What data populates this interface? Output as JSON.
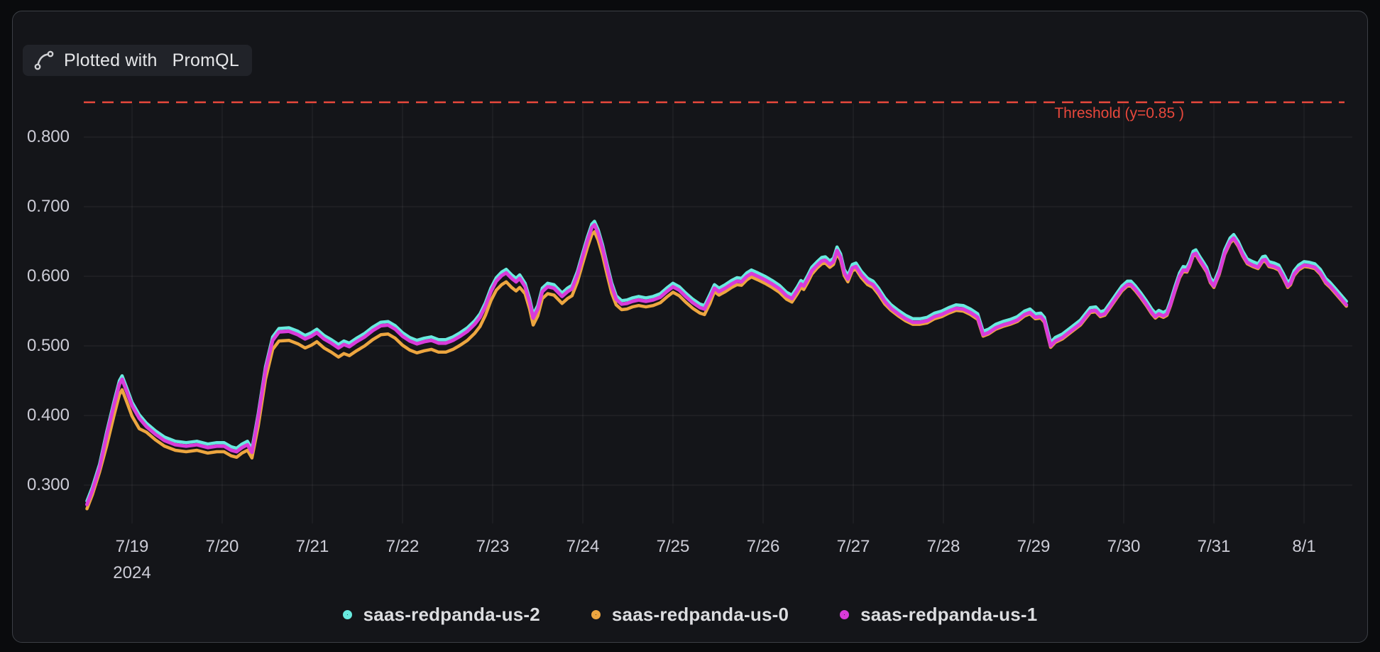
{
  "badge": {
    "prefix": "Plotted with",
    "product": "PromQL"
  },
  "threshold": {
    "label": "Threshold (y=0.85 )",
    "value": 0.85,
    "color": "#e8483c"
  },
  "axes": {
    "y_ticks": [
      {
        "value": 0.8,
        "label": "0.800"
      },
      {
        "value": 0.7,
        "label": "0.700"
      },
      {
        "value": 0.6,
        "label": "0.600"
      },
      {
        "value": 0.5,
        "label": "0.500"
      },
      {
        "value": 0.4,
        "label": "0.400"
      },
      {
        "value": 0.3,
        "label": "0.300"
      }
    ],
    "x_ticks": [
      {
        "day": 0,
        "label": "7/19",
        "sublabel": "2024"
      },
      {
        "day": 1,
        "label": "7/20"
      },
      {
        "day": 2,
        "label": "7/21"
      },
      {
        "day": 3,
        "label": "7/22"
      },
      {
        "day": 4,
        "label": "7/23"
      },
      {
        "day": 5,
        "label": "7/24"
      },
      {
        "day": 6,
        "label": "7/25"
      },
      {
        "day": 7,
        "label": "7/26"
      },
      {
        "day": 8,
        "label": "7/27"
      },
      {
        "day": 9,
        "label": "7/28"
      },
      {
        "day": 10,
        "label": "7/29"
      },
      {
        "day": 11,
        "label": "7/30"
      },
      {
        "day": 12,
        "label": "7/31"
      },
      {
        "day": 13,
        "label": "8/1"
      }
    ]
  },
  "chart_data": {
    "type": "line",
    "title": "",
    "xlabel": "",
    "ylabel": "",
    "x_unit": "days since 2024-07-19",
    "year_label": "2024",
    "ylim": [
      0.25,
      0.9
    ],
    "grid": true,
    "legend_position": "bottom-center",
    "threshold": {
      "value": 0.85,
      "label": "Threshold (y=0.85 )"
    },
    "x_days": [
      -0.5,
      -0.44,
      -0.36,
      -0.28,
      -0.2,
      -0.14,
      -0.11,
      -0.06,
      0,
      0.08,
      0.16,
      0.26,
      0.36,
      0.48,
      0.6,
      0.72,
      0.84,
      0.94,
      1.02,
      1.1,
      1.16,
      1.22,
      1.28,
      1.33,
      1.4,
      1.48,
      1.56,
      1.63,
      1.74,
      1.84,
      1.92,
      1.99,
      2.05,
      2.13,
      2.21,
      2.29,
      2.35,
      2.41,
      2.49,
      2.58,
      2.67,
      2.76,
      2.84,
      2.92,
      3,
      3.08,
      3.16,
      3.24,
      3.32,
      3.4,
      3.48,
      3.56,
      3.64,
      3.72,
      3.8,
      3.86,
      3.92,
      3.98,
      4.04,
      4.1,
      4.15,
      4.21,
      4.26,
      4.3,
      4.36,
      4.41,
      4.45,
      4.5,
      4.55,
      4.61,
      4.68,
      4.77,
      4.83,
      4.88,
      4.94,
      5,
      5.05,
      5.1,
      5.13,
      5.17,
      5.22,
      5.27,
      5.32,
      5.37,
      5.43,
      5.49,
      5.55,
      5.62,
      5.7,
      5.78,
      5.86,
      5.93,
      6,
      6.07,
      6.14,
      6.22,
      6.3,
      6.35,
      6.41,
      6.46,
      6.51,
      6.58,
      6.65,
      6.71,
      6.76,
      6.82,
      6.87,
      6.94,
      7.02,
      7.1,
      7.18,
      7.26,
      7.32,
      7.38,
      7.42,
      7.45,
      7.49,
      7.54,
      7.6,
      7.65,
      7.69,
      7.74,
      7.78,
      7.82,
      7.86,
      7.9,
      7.94,
      7.99,
      8.03,
      8.09,
      8.16,
      8.22,
      8.28,
      8.35,
      8.42,
      8.5,
      8.58,
      8.66,
      8.74,
      8.82,
      8.9,
      8.98,
      9.06,
      9.14,
      9.22,
      9.3,
      9.38,
      9.44,
      9.5,
      9.58,
      9.66,
      9.74,
      9.82,
      9.9,
      9.96,
      10.02,
      10.08,
      10.12,
      10.16,
      10.19,
      10.24,
      10.32,
      10.42,
      10.52,
      10.58,
      10.63,
      10.69,
      10.74,
      10.79,
      10.85,
      10.92,
      10.98,
      11.04,
      11.08,
      11.13,
      11.19,
      11.25,
      11.31,
      11.35,
      11.39,
      11.44,
      11.48,
      11.52,
      11.57,
      11.62,
      11.66,
      11.7,
      11.73,
      11.77,
      11.8,
      11.84,
      11.88,
      11.92,
      11.96,
      12,
      12.06,
      12.12,
      12.18,
      12.22,
      12.27,
      12.32,
      12.37,
      12.43,
      12.49,
      12.54,
      12.57,
      12.61,
      12.67,
      12.72,
      12.77,
      12.82,
      12.85,
      12.89,
      12.94,
      13,
      13.06,
      13.12,
      13.18,
      13.24,
      13.29,
      13.35,
      13.41,
      13.47
    ],
    "series": [
      {
        "name": "saas-redpanda-us-2",
        "color": "#68eadf",
        "values": [
          0.277,
          0.297,
          0.33,
          0.377,
          0.42,
          0.45,
          0.457,
          0.44,
          0.419,
          0.401,
          0.389,
          0.378,
          0.369,
          0.363,
          0.361,
          0.363,
          0.359,
          0.361,
          0.361,
          0.355,
          0.353,
          0.359,
          0.363,
          0.352,
          0.403,
          0.47,
          0.513,
          0.525,
          0.526,
          0.521,
          0.515,
          0.519,
          0.524,
          0.515,
          0.509,
          0.502,
          0.507,
          0.504,
          0.511,
          0.518,
          0.527,
          0.534,
          0.535,
          0.529,
          0.519,
          0.512,
          0.508,
          0.511,
          0.513,
          0.509,
          0.509,
          0.513,
          0.519,
          0.526,
          0.536,
          0.546,
          0.562,
          0.583,
          0.598,
          0.606,
          0.61,
          0.602,
          0.597,
          0.602,
          0.59,
          0.568,
          0.545,
          0.558,
          0.583,
          0.59,
          0.588,
          0.576,
          0.583,
          0.587,
          0.607,
          0.634,
          0.656,
          0.675,
          0.679,
          0.667,
          0.645,
          0.617,
          0.591,
          0.572,
          0.565,
          0.566,
          0.569,
          0.571,
          0.569,
          0.571,
          0.575,
          0.583,
          0.59,
          0.585,
          0.576,
          0.567,
          0.56,
          0.558,
          0.574,
          0.588,
          0.583,
          0.588,
          0.594,
          0.598,
          0.597,
          0.605,
          0.609,
          0.605,
          0.6,
          0.594,
          0.587,
          0.577,
          0.573,
          0.585,
          0.594,
          0.591,
          0.6,
          0.613,
          0.621,
          0.627,
          0.628,
          0.622,
          0.626,
          0.642,
          0.632,
          0.61,
          0.601,
          0.617,
          0.619,
          0.607,
          0.597,
          0.593,
          0.583,
          0.569,
          0.559,
          0.551,
          0.544,
          0.539,
          0.539,
          0.541,
          0.547,
          0.55,
          0.555,
          0.559,
          0.558,
          0.553,
          0.546,
          0.521,
          0.524,
          0.531,
          0.535,
          0.538,
          0.542,
          0.55,
          0.553,
          0.546,
          0.547,
          0.541,
          0.52,
          0.505,
          0.512,
          0.517,
          0.527,
          0.537,
          0.547,
          0.555,
          0.556,
          0.549,
          0.551,
          0.562,
          0.575,
          0.586,
          0.593,
          0.593,
          0.586,
          0.576,
          0.565,
          0.553,
          0.547,
          0.551,
          0.548,
          0.551,
          0.565,
          0.586,
          0.605,
          0.614,
          0.613,
          0.621,
          0.636,
          0.638,
          0.629,
          0.621,
          0.613,
          0.598,
          0.591,
          0.61,
          0.638,
          0.655,
          0.66,
          0.65,
          0.636,
          0.625,
          0.621,
          0.618,
          0.628,
          0.629,
          0.621,
          0.619,
          0.616,
          0.604,
          0.591,
          0.595,
          0.608,
          0.616,
          0.621,
          0.62,
          0.618,
          0.61,
          0.597,
          0.591,
          0.582,
          0.573,
          0.564
        ]
      },
      {
        "name": "saas-redpanda-us-0",
        "color": "#eda640",
        "values": [
          0.266,
          0.286,
          0.319,
          0.357,
          0.4,
          0.43,
          0.437,
          0.42,
          0.399,
          0.381,
          0.376,
          0.365,
          0.356,
          0.35,
          0.348,
          0.35,
          0.346,
          0.348,
          0.348,
          0.342,
          0.34,
          0.346,
          0.35,
          0.339,
          0.385,
          0.452,
          0.495,
          0.507,
          0.508,
          0.503,
          0.497,
          0.501,
          0.506,
          0.497,
          0.491,
          0.484,
          0.489,
          0.486,
          0.493,
          0.5,
          0.509,
          0.516,
          0.517,
          0.511,
          0.501,
          0.494,
          0.49,
          0.493,
          0.495,
          0.491,
          0.491,
          0.495,
          0.501,
          0.508,
          0.518,
          0.528,
          0.544,
          0.565,
          0.58,
          0.588,
          0.592,
          0.584,
          0.579,
          0.584,
          0.575,
          0.553,
          0.53,
          0.543,
          0.568,
          0.575,
          0.573,
          0.561,
          0.568,
          0.572,
          0.592,
          0.619,
          0.641,
          0.66,
          0.664,
          0.652,
          0.63,
          0.602,
          0.576,
          0.559,
          0.552,
          0.553,
          0.556,
          0.558,
          0.556,
          0.558,
          0.562,
          0.57,
          0.577,
          0.572,
          0.563,
          0.554,
          0.547,
          0.545,
          0.561,
          0.578,
          0.573,
          0.578,
          0.584,
          0.588,
          0.587,
          0.595,
          0.599,
          0.595,
          0.59,
          0.584,
          0.577,
          0.567,
          0.563,
          0.575,
          0.584,
          0.581,
          0.59,
          0.603,
          0.612,
          0.618,
          0.619,
          0.613,
          0.617,
          0.633,
          0.623,
          0.601,
          0.592,
          0.608,
          0.61,
          0.598,
          0.588,
          0.584,
          0.574,
          0.56,
          0.551,
          0.543,
          0.536,
          0.531,
          0.531,
          0.533,
          0.539,
          0.542,
          0.547,
          0.551,
          0.55,
          0.545,
          0.538,
          0.514,
          0.517,
          0.524,
          0.528,
          0.531,
          0.535,
          0.543,
          0.546,
          0.539,
          0.54,
          0.534,
          0.513,
          0.498,
          0.505,
          0.51,
          0.52,
          0.53,
          0.54,
          0.548,
          0.549,
          0.542,
          0.544,
          0.555,
          0.568,
          0.579,
          0.586,
          0.586,
          0.579,
          0.569,
          0.558,
          0.546,
          0.54,
          0.544,
          0.541,
          0.544,
          0.558,
          0.579,
          0.598,
          0.607,
          0.606,
          0.614,
          0.629,
          0.631,
          0.622,
          0.614,
          0.606,
          0.591,
          0.584,
          0.603,
          0.631,
          0.648,
          0.653,
          0.643,
          0.629,
          0.618,
          0.614,
          0.611,
          0.621,
          0.622,
          0.614,
          0.612,
          0.609,
          0.597,
          0.584,
          0.588,
          0.601,
          0.609,
          0.614,
          0.613,
          0.611,
          0.603,
          0.59,
          0.584,
          0.575,
          0.566,
          0.557
        ]
      },
      {
        "name": "saas-redpanda-us-1",
        "color": "#d93bd9",
        "values": [
          0.272,
          0.292,
          0.325,
          0.372,
          0.415,
          0.445,
          0.452,
          0.435,
          0.414,
          0.396,
          0.384,
          0.373,
          0.364,
          0.358,
          0.356,
          0.358,
          0.354,
          0.356,
          0.356,
          0.35,
          0.348,
          0.354,
          0.358,
          0.347,
          0.398,
          0.465,
          0.508,
          0.52,
          0.521,
          0.516,
          0.51,
          0.514,
          0.519,
          0.51,
          0.504,
          0.497,
          0.502,
          0.499,
          0.506,
          0.513,
          0.522,
          0.529,
          0.53,
          0.524,
          0.514,
          0.507,
          0.503,
          0.506,
          0.508,
          0.504,
          0.504,
          0.508,
          0.514,
          0.521,
          0.531,
          0.541,
          0.557,
          0.578,
          0.593,
          0.601,
          0.605,
          0.597,
          0.592,
          0.597,
          0.585,
          0.563,
          0.54,
          0.553,
          0.578,
          0.585,
          0.583,
          0.571,
          0.578,
          0.582,
          0.602,
          0.629,
          0.651,
          0.67,
          0.674,
          0.662,
          0.64,
          0.612,
          0.586,
          0.567,
          0.56,
          0.561,
          0.564,
          0.566,
          0.564,
          0.566,
          0.57,
          0.578,
          0.585,
          0.58,
          0.571,
          0.562,
          0.555,
          0.553,
          0.569,
          0.583,
          0.578,
          0.583,
          0.589,
          0.593,
          0.592,
          0.6,
          0.604,
          0.6,
          0.595,
          0.589,
          0.582,
          0.572,
          0.568,
          0.58,
          0.589,
          0.586,
          0.595,
          0.608,
          0.616,
          0.622,
          0.623,
          0.617,
          0.621,
          0.637,
          0.627,
          0.605,
          0.596,
          0.612,
          0.614,
          0.602,
          0.592,
          0.588,
          0.578,
          0.564,
          0.554,
          0.546,
          0.539,
          0.534,
          0.534,
          0.536,
          0.542,
          0.545,
          0.55,
          0.554,
          0.553,
          0.548,
          0.541,
          0.516,
          0.519,
          0.526,
          0.53,
          0.533,
          0.537,
          0.545,
          0.548,
          0.541,
          0.542,
          0.536,
          0.515,
          0.5,
          0.507,
          0.512,
          0.522,
          0.532,
          0.542,
          0.55,
          0.551,
          0.544,
          0.546,
          0.557,
          0.57,
          0.581,
          0.588,
          0.588,
          0.581,
          0.571,
          0.56,
          0.548,
          0.542,
          0.546,
          0.543,
          0.546,
          0.56,
          0.581,
          0.6,
          0.609,
          0.608,
          0.616,
          0.631,
          0.633,
          0.624,
          0.616,
          0.608,
          0.593,
          0.586,
          0.605,
          0.633,
          0.65,
          0.655,
          0.645,
          0.631,
          0.62,
          0.616,
          0.613,
          0.623,
          0.624,
          0.616,
          0.614,
          0.611,
          0.599,
          0.586,
          0.59,
          0.603,
          0.611,
          0.616,
          0.615,
          0.613,
          0.605,
          0.592,
          0.586,
          0.577,
          0.568,
          0.559
        ]
      }
    ]
  }
}
